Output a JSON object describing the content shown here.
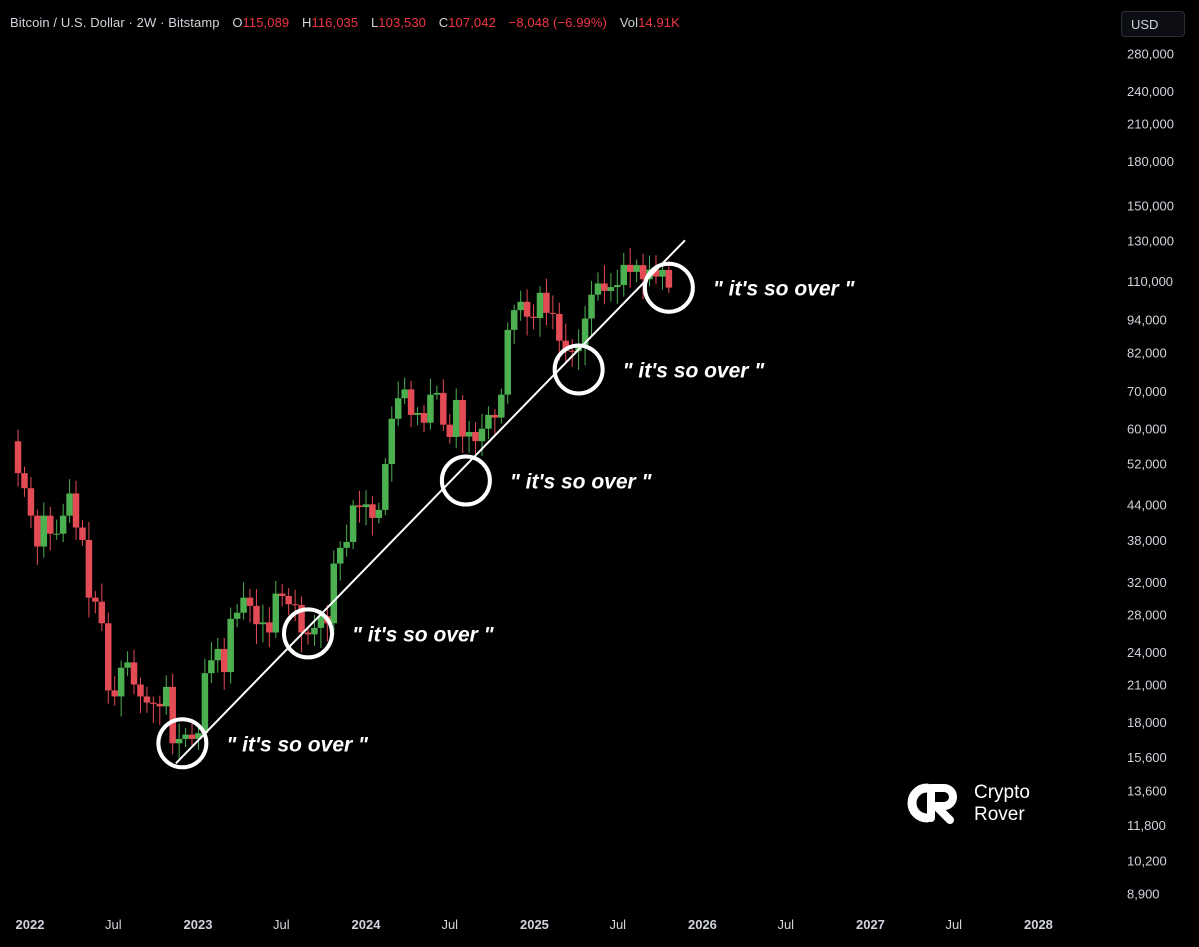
{
  "header": {
    "symbol": "Bitcoin / U.S. Dollar · 2W · Bitstamp",
    "open_label": "O",
    "open": "115,089",
    "high_label": "H",
    "high": "116,035",
    "low_label": "L",
    "low": "103,530",
    "close_label": "C",
    "close": "107,042",
    "change": "−8,048 (−6.99%)",
    "vol_label": "Vol",
    "vol": "14.91K"
  },
  "currency_button": "USD",
  "logo": {
    "icon": "cr-logo-icon",
    "line1": "Crypto",
    "line2": "Rover"
  },
  "colors": {
    "up": "#4caf50",
    "down": "#e34b55",
    "text": "#d1d4dc",
    "background": "#000000",
    "annotation": "#ffffff"
  },
  "chart_data": {
    "type": "candlestick",
    "y_scale": "log",
    "ylim": [
      8000,
      320000
    ],
    "y_ticks": [
      "280,000",
      "240,000",
      "210,000",
      "180,000",
      "150,000",
      "130,000",
      "110,000",
      "94,000",
      "82,000",
      "70,000",
      "60,000",
      "52,000",
      "44,000",
      "38,000",
      "32,000",
      "28,000",
      "24,000",
      "21,000",
      "18,000",
      "15,600",
      "13,600",
      "11,800",
      "10,200",
      "8,900"
    ],
    "x_ticks": [
      {
        "label": "2022",
        "date": "2022-01-01",
        "bold": true
      },
      {
        "label": "Jul",
        "date": "2022-07-01",
        "bold": false
      },
      {
        "label": "2023",
        "date": "2023-01-01",
        "bold": true
      },
      {
        "label": "Jul",
        "date": "2023-07-01",
        "bold": false
      },
      {
        "label": "2024",
        "date": "2024-01-01",
        "bold": true
      },
      {
        "label": "Jul",
        "date": "2024-07-01",
        "bold": false
      },
      {
        "label": "2025",
        "date": "2025-01-01",
        "bold": true
      },
      {
        "label": "Jul",
        "date": "2025-07-01",
        "bold": false
      },
      {
        "label": "2026",
        "date": "2026-01-01",
        "bold": true
      },
      {
        "label": "Jul",
        "date": "2026-07-01",
        "bold": false
      },
      {
        "label": "2027",
        "date": "2027-01-01",
        "bold": true
      },
      {
        "label": "Jul",
        "date": "2027-07-01",
        "bold": false
      },
      {
        "label": "2028",
        "date": "2028-01-01",
        "bold": true
      }
    ],
    "series_close": [
      [
        "2021-11-22",
        57000
      ],
      [
        "2021-12-06",
        50000
      ],
      [
        "2021-12-20",
        47000
      ],
      [
        "2022-01-03",
        42000
      ],
      [
        "2022-01-17",
        37000
      ],
      [
        "2022-01-31",
        42000
      ],
      [
        "2022-02-14",
        39000
      ],
      [
        "2022-02-28",
        39000
      ],
      [
        "2022-03-14",
        42000
      ],
      [
        "2022-03-28",
        46000
      ],
      [
        "2022-04-11",
        40000
      ],
      [
        "2022-04-25",
        38000
      ],
      [
        "2022-05-09",
        30000
      ],
      [
        "2022-05-23",
        29500
      ],
      [
        "2022-06-06",
        27000
      ],
      [
        "2022-06-20",
        20500
      ],
      [
        "2022-07-04",
        20000
      ],
      [
        "2022-07-18",
        22500
      ],
      [
        "2022-08-01",
        23000
      ],
      [
        "2022-08-15",
        21000
      ],
      [
        "2022-08-29",
        20000
      ],
      [
        "2022-09-12",
        19500
      ],
      [
        "2022-09-26",
        19400
      ],
      [
        "2022-10-10",
        19200
      ],
      [
        "2022-10-24",
        20800
      ],
      [
        "2022-11-07",
        16500
      ],
      [
        "2022-11-21",
        16800
      ],
      [
        "2022-12-05",
        17100
      ],
      [
        "2022-12-19",
        16800
      ],
      [
        "2023-01-02",
        17200
      ],
      [
        "2023-01-16",
        22000
      ],
      [
        "2023-01-30",
        23200
      ],
      [
        "2023-02-13",
        24300
      ],
      [
        "2023-02-27",
        22100
      ],
      [
        "2023-03-13",
        27500
      ],
      [
        "2023-03-27",
        28200
      ],
      [
        "2023-04-10",
        30000
      ],
      [
        "2023-04-24",
        29000
      ],
      [
        "2023-05-08",
        26900
      ],
      [
        "2023-05-22",
        27100
      ],
      [
        "2023-06-05",
        26000
      ],
      [
        "2023-06-19",
        30500
      ],
      [
        "2023-07-03",
        30200
      ],
      [
        "2023-07-17",
        29200
      ],
      [
        "2023-07-31",
        29100
      ],
      [
        "2023-08-14",
        26000
      ],
      [
        "2023-08-28",
        25800
      ],
      [
        "2023-09-11",
        26500
      ],
      [
        "2023-09-25",
        27800
      ],
      [
        "2023-10-09",
        27000
      ],
      [
        "2023-10-23",
        34500
      ],
      [
        "2023-11-06",
        36800
      ],
      [
        "2023-11-20",
        37700
      ],
      [
        "2023-12-04",
        43800
      ],
      [
        "2023-12-18",
        43500
      ],
      [
        "2024-01-01",
        44000
      ],
      [
        "2024-01-15",
        41600
      ],
      [
        "2024-01-29",
        43000
      ],
      [
        "2024-02-12",
        51900
      ],
      [
        "2024-02-26",
        62500
      ],
      [
        "2024-03-11",
        68000
      ],
      [
        "2024-03-25",
        70500
      ],
      [
        "2024-04-08",
        63500
      ],
      [
        "2024-04-22",
        64000
      ],
      [
        "2024-05-06",
        61500
      ],
      [
        "2024-05-20",
        69000
      ],
      [
        "2024-06-03",
        69500
      ],
      [
        "2024-06-17",
        61000
      ],
      [
        "2024-07-01",
        58000
      ],
      [
        "2024-07-15",
        67500
      ],
      [
        "2024-07-29",
        58100
      ],
      [
        "2024-08-12",
        59200
      ],
      [
        "2024-08-26",
        57000
      ],
      [
        "2024-09-09",
        60000
      ],
      [
        "2024-09-23",
        63500
      ],
      [
        "2024-10-07",
        62800
      ],
      [
        "2024-10-21",
        69000
      ],
      [
        "2024-11-04",
        90000
      ],
      [
        "2024-11-18",
        97600
      ],
      [
        "2024-12-02",
        101000
      ],
      [
        "2024-12-16",
        95000
      ],
      [
        "2024-12-30",
        94500
      ],
      [
        "2025-01-13",
        104800
      ],
      [
        "2025-01-27",
        96500
      ],
      [
        "2025-02-10",
        96100
      ],
      [
        "2025-02-24",
        86100
      ],
      [
        "2025-03-10",
        82600
      ],
      [
        "2025-03-24",
        82500
      ],
      [
        "2025-04-07",
        84500
      ],
      [
        "2025-04-21",
        94300
      ],
      [
        "2025-05-05",
        104000
      ],
      [
        "2025-05-19",
        108900
      ],
      [
        "2025-06-02",
        105600
      ],
      [
        "2025-06-16",
        107300
      ],
      [
        "2025-06-30",
        108200
      ],
      [
        "2025-07-14",
        117500
      ],
      [
        "2025-07-28",
        114200
      ],
      [
        "2025-08-11",
        117400
      ],
      [
        "2025-08-25",
        110800
      ],
      [
        "2025-09-08",
        115300
      ],
      [
        "2025-09-22",
        112000
      ],
      [
        "2025-10-06",
        115089
      ],
      [
        "2025-10-20",
        107042
      ]
    ],
    "trendline": {
      "from": [
        "2022-11-14",
        15200
      ],
      "to": [
        "2025-11-24",
        130000
      ]
    },
    "annotations": [
      {
        "text": "\" it's so over \"",
        "date": "2022-11-28",
        "price": 16500
      },
      {
        "text": "\" it's so over \"",
        "date": "2023-08-28",
        "price": 25900
      },
      {
        "text": "\" it's so over \"",
        "date": "2024-08-05",
        "price": 48500
      },
      {
        "text": "\" it's so over \"",
        "date": "2025-04-07",
        "price": 76500
      },
      {
        "text": "\" it's so over \"",
        "date": "2025-10-20",
        "price": 107000
      }
    ]
  }
}
